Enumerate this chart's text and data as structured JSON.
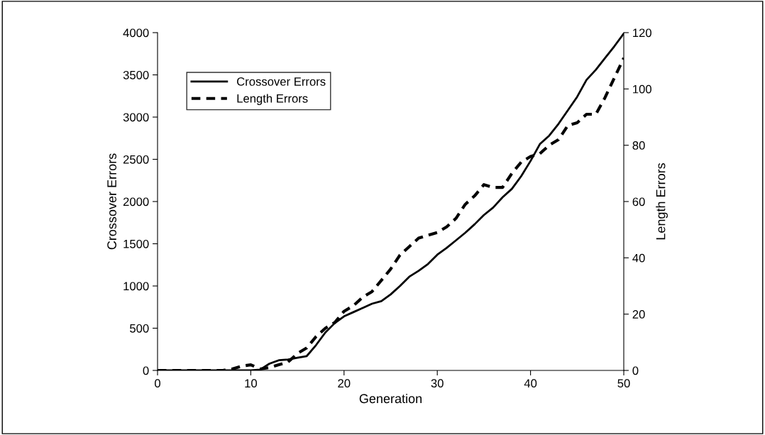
{
  "chart_data": {
    "type": "line",
    "xlabel": "Generation",
    "ylabel": "Crossover Errors",
    "y2label": "Length Errors",
    "x": [
      0,
      1,
      2,
      3,
      4,
      5,
      6,
      7,
      8,
      9,
      10,
      11,
      12,
      13,
      14,
      15,
      16,
      17,
      18,
      19,
      20,
      21,
      22,
      23,
      24,
      25,
      26,
      27,
      28,
      29,
      30,
      31,
      32,
      33,
      34,
      35,
      36,
      37,
      38,
      39,
      40,
      41,
      42,
      43,
      44,
      45,
      46,
      47,
      48,
      49,
      50
    ],
    "series": [
      {
        "name": "Crossover Errors",
        "color": "#000000",
        "line_style": "solid",
        "values": [
          0,
          0,
          0,
          0,
          0,
          0,
          0,
          0,
          0,
          0,
          0,
          10,
          80,
          120,
          130,
          150,
          170,
          300,
          450,
          560,
          640,
          690,
          740,
          790,
          820,
          900,
          1000,
          1110,
          1180,
          1260,
          1370,
          1450,
          1540,
          1630,
          1730,
          1840,
          1930,
          2050,
          2150,
          2300,
          2480,
          2680,
          2780,
          2920,
          3080,
          3240,
          3440,
          3560,
          3700,
          3840,
          3990
        ]
      },
      {
        "name": "Length Errors",
        "color": "#000000",
        "line_style": "dashed",
        "axis": "y2",
        "values": [
          0,
          0,
          0,
          0,
          0,
          0,
          0,
          0,
          0.5,
          1.5,
          2,
          0.5,
          1,
          2,
          3,
          6,
          8,
          12,
          15,
          17,
          21,
          23,
          26,
          28,
          32,
          36,
          41,
          44,
          47,
          48,
          49,
          51,
          54,
          59,
          62,
          66,
          65,
          65,
          70,
          74,
          76,
          77,
          80,
          82,
          87,
          88,
          91,
          91,
          97,
          104,
          111
        ]
      }
    ],
    "xlim": [
      0,
      50
    ],
    "xticks": [
      0,
      10,
      20,
      30,
      40,
      50
    ],
    "ylim": [
      0,
      4000
    ],
    "yticks": [
      0,
      500,
      1000,
      1500,
      2000,
      2500,
      3000,
      3500,
      4000
    ],
    "y2lim": [
      0,
      120
    ],
    "y2ticks": [
      0,
      20,
      40,
      60,
      80,
      100,
      120
    ],
    "grid": false,
    "legend": "top left",
    "marker": "none"
  }
}
